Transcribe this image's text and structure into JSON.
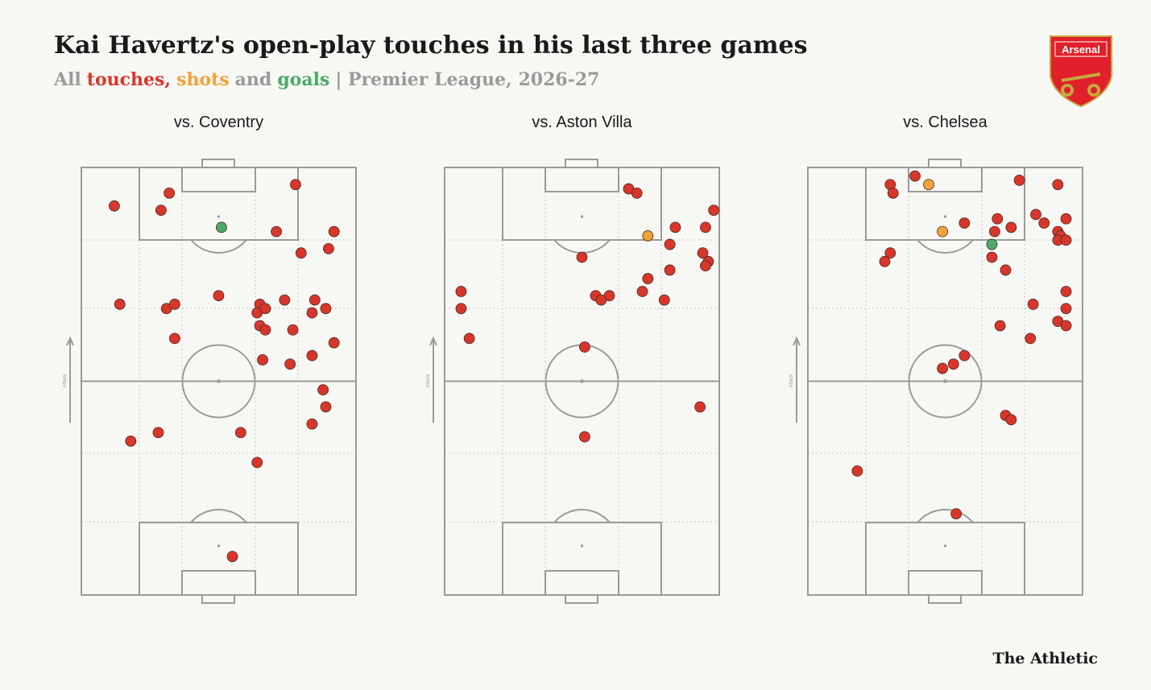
{
  "header": {
    "title": "Kai Havertz's open-play touches in his last three games",
    "subtitle": [
      {
        "text": "All",
        "color": "#9a9a9a"
      },
      {
        "text": "touches,",
        "color": "#d9362b"
      },
      {
        "text": "shots",
        "color": "#f2a23a"
      },
      {
        "text": "and",
        "color": "#9a9a9a"
      },
      {
        "text": "goals",
        "color": "#4caa6a"
      },
      {
        "text": "| Premier League, 2026-27",
        "color": "#9a9a9a"
      }
    ],
    "logo_text": "Arsenal"
  },
  "footer": {
    "brand": "The Athletic"
  },
  "chart_data": [
    {
      "type": "scatter",
      "title": "vs. Coventry",
      "ylabel": "Attack",
      "xlim": [
        0,
        100
      ],
      "ylim": [
        0,
        100
      ],
      "series": [
        {
          "color": "#d9362b",
          "x": [
            12,
            32,
            29,
            78,
            71,
            92,
            90,
            80,
            14,
            31,
            34,
            50,
            65,
            64,
            67,
            74,
            85,
            84,
            89,
            65,
            67,
            77,
            34,
            92,
            66,
            84,
            76,
            88,
            89,
            84,
            58,
            28,
            18,
            64,
            55
          ],
          "y": [
            91,
            94,
            90,
            96,
            85,
            85,
            81,
            80,
            68,
            67,
            68,
            70,
            68,
            66,
            67,
            69,
            69,
            66,
            67,
            63,
            62,
            62,
            60,
            59,
            55,
            56,
            54,
            48,
            44,
            40,
            38,
            38,
            36,
            31,
            9
          ]
        },
        {
          "color": "#4caa6a",
          "x": [
            51
          ],
          "y": [
            86
          ]
        }
      ]
    },
    {
      "type": "scatter",
      "title": "vs. Aston Villa",
      "ylabel": "Attack",
      "xlim": [
        0,
        100
      ],
      "ylim": [
        0,
        100
      ],
      "series": [
        {
          "color": "#d9362b",
          "x": [
            67,
            70,
            98,
            95,
            84,
            82,
            94,
            96,
            95,
            50,
            82,
            74,
            55,
            60,
            57,
            72,
            80,
            6,
            6,
            9,
            51,
            93,
            51
          ],
          "y": [
            95,
            94,
            90,
            86,
            86,
            82,
            80,
            78,
            77,
            79,
            76,
            74,
            70,
            70,
            69,
            71,
            69,
            71,
            67,
            60,
            58,
            44,
            37
          ]
        },
        {
          "color": "#f2a23a",
          "x": [
            74
          ],
          "y": [
            84
          ]
        }
      ]
    },
    {
      "type": "scatter",
      "title": "vs. Chelsea",
      "ylabel": "Attack",
      "xlim": [
        0,
        100
      ],
      "ylim": [
        0,
        100
      ],
      "series": [
        {
          "color": "#d9362b",
          "x": [
            30,
            39,
            31,
            77,
            91,
            57,
            69,
            74,
            68,
            83,
            86,
            94,
            91,
            92,
            91,
            94,
            30,
            28,
            67,
            72,
            94,
            82,
            94,
            91,
            94,
            70,
            81,
            57,
            53,
            49,
            72,
            74,
            18,
            54
          ],
          "y": [
            96,
            98,
            94,
            97,
            96,
            87,
            88,
            86,
            85,
            89,
            87,
            88,
            85,
            84,
            83,
            83,
            80,
            78,
            79,
            76,
            71,
            68,
            67,
            64,
            63,
            63,
            60,
            56,
            54,
            53,
            42,
            41,
            29,
            19
          ]
        },
        {
          "color": "#f2a23a",
          "x": [
            44,
            49
          ],
          "y": [
            96,
            85
          ]
        },
        {
          "color": "#4caa6a",
          "x": [
            67
          ],
          "y": [
            82
          ]
        }
      ]
    }
  ]
}
